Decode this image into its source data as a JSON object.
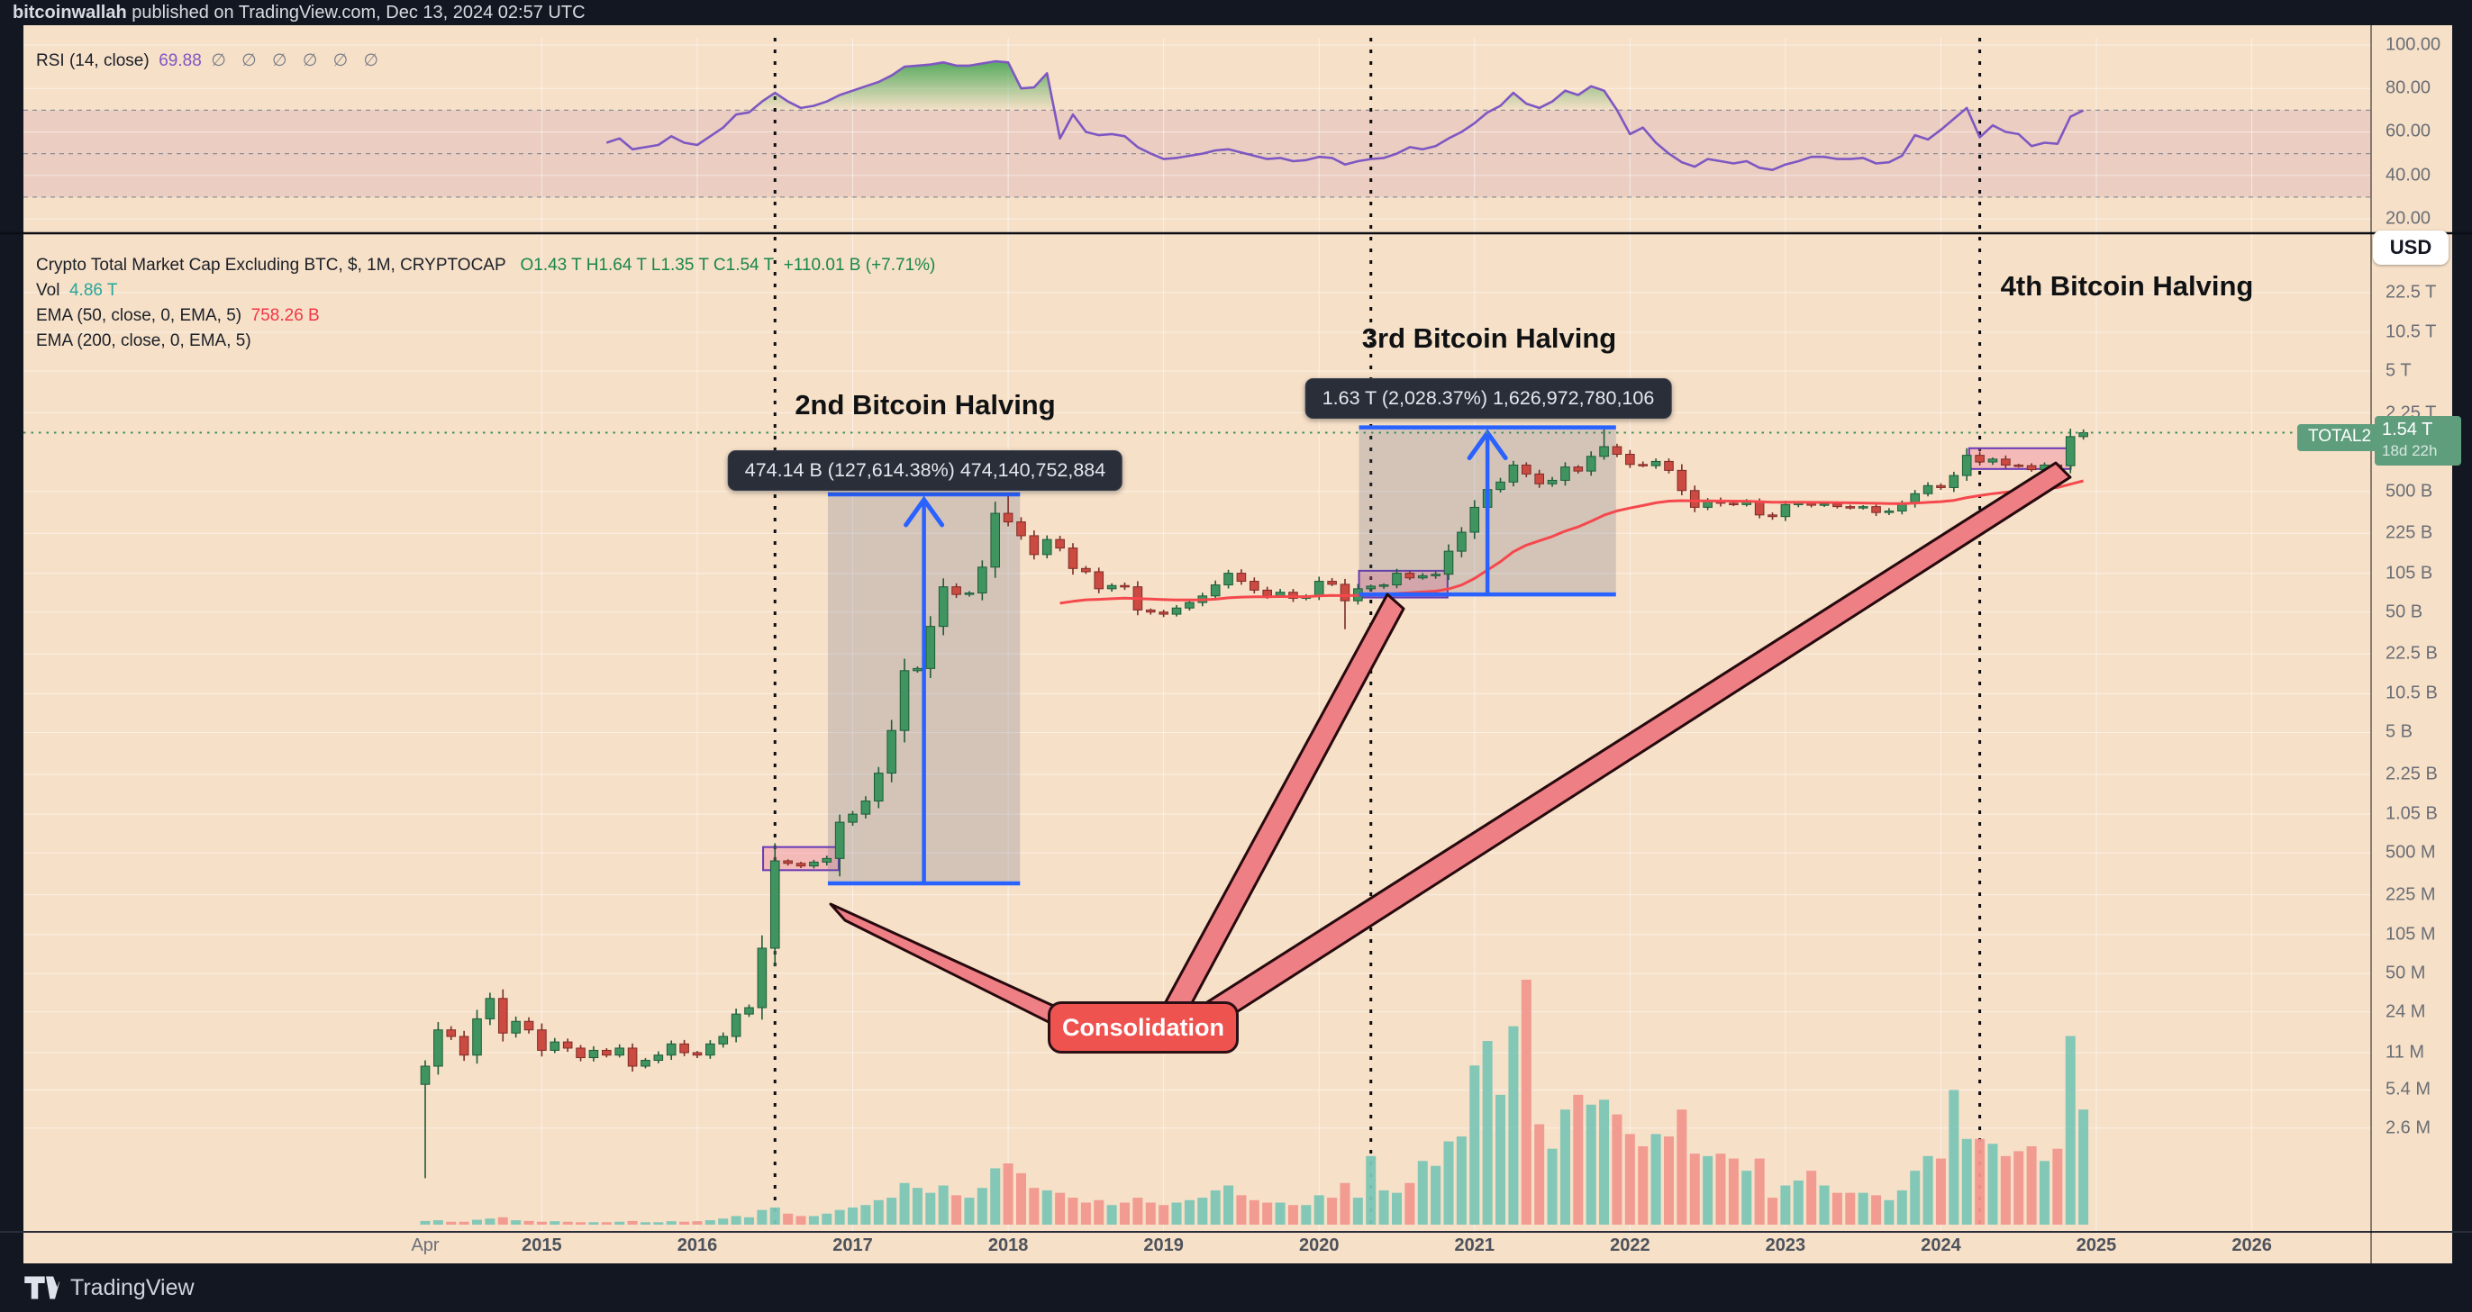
{
  "header": {
    "user": "bitcoinwallah",
    "rest": " published on TradingView.com, Dec 13, 2024 02:57 UTC"
  },
  "footer": {
    "brand": "TradingView"
  },
  "rsi_pane": {
    "legend": "RSI (14, close)",
    "value": "69.88",
    "empties": "∅ ∅ ∅ ∅ ∅ ∅",
    "axis": [
      "100.00",
      "80.00",
      "60.00",
      "40.00",
      "20.00"
    ]
  },
  "main_pane": {
    "legend_title": "Crypto Total Market Cap Excluding BTC, $, 1M, CRYPTOCAP",
    "ohlc": "O1.43 T  H1.64 T  L1.35 T  C1.54 T",
    "change": "+110.01 B (+7.71%)",
    "vol_label": "Vol",
    "vol_value": "4.86 T",
    "ema50_label": "EMA (50, close, 0, EMA, 5)",
    "ema50_value": "758.26 B",
    "ema200_label": "EMA (200, close, 0, EMA, 5)",
    "usd": "USD",
    "symbol_badge": "TOTAL2",
    "price_badge": {
      "price": "1.54 T",
      "countdown": "18d 22h"
    },
    "price_axis": [
      {
        "label": "22.5 T",
        "value": 22500000000000.0
      },
      {
        "label": "10.5 T",
        "value": 10500000000000.0
      },
      {
        "label": "5 T",
        "value": 5000000000000.0
      },
      {
        "label": "2.25 T",
        "value": 2250000000000.0
      },
      {
        "label": "500 B",
        "value": 500000000000.0
      },
      {
        "label": "225 B",
        "value": 225000000000.0
      },
      {
        "label": "105 B",
        "value": 105000000000.0
      },
      {
        "label": "50 B",
        "value": 50000000000.0
      },
      {
        "label": "22.5 B",
        "value": 22500000000.0
      },
      {
        "label": "10.5 B",
        "value": 10500000000.0
      },
      {
        "label": "5 B",
        "value": 5000000000.0
      },
      {
        "label": "2.25 B",
        "value": 2250000000.0
      },
      {
        "label": "1.05 B",
        "value": 1050000000.0
      },
      {
        "label": "500 M",
        "value": 500000000.0
      },
      {
        "label": "225 M",
        "value": 225000000.0
      },
      {
        "label": "105 M",
        "value": 105000000.0
      },
      {
        "label": "50 M",
        "value": 50000000.0
      },
      {
        "label": "24 M",
        "value": 24000000.0
      },
      {
        "label": "11 M",
        "value": 11000000.0
      },
      {
        "label": "5.4 M",
        "value": 5400000.0
      },
      {
        "label": "2.6 M",
        "value": 2600000.0
      }
    ]
  },
  "annotations": {
    "halvings": [
      {
        "title": "2nd Bitcoin Halving",
        "tooltip": "474.14 B (127,614.38%) 474,140,752,884"
      },
      {
        "title": "3rd Bitcoin Halving",
        "tooltip": "1.63 T (2,028.37%) 1,626,972,780,106"
      },
      {
        "title": "4th Bitcoin Halving"
      }
    ],
    "consolidation": "Consolidation"
  },
  "time_axis": [
    {
      "label": "Apr",
      "m": 0,
      "year": false
    },
    {
      "label": "2015",
      "m": 9,
      "year": true
    },
    {
      "label": "2016",
      "m": 21,
      "year": true
    },
    {
      "label": "2017",
      "m": 33,
      "year": true
    },
    {
      "label": "2018",
      "m": 45,
      "year": true
    },
    {
      "label": "2019",
      "m": 57,
      "year": true
    },
    {
      "label": "2020",
      "m": 69,
      "year": true
    },
    {
      "label": "2021",
      "m": 81,
      "year": true
    },
    {
      "label": "2022",
      "m": 93,
      "year": true
    },
    {
      "label": "2023",
      "m": 105,
      "year": true
    },
    {
      "label": "2024",
      "m": 117,
      "year": true
    },
    {
      "label": "2025",
      "m": 129,
      "year": true
    },
    {
      "label": "2026",
      "m": 141,
      "year": true
    }
  ],
  "colors": {
    "up": "#3f9460",
    "up_edge": "#1e5c38",
    "down": "#cb4a41",
    "down_edge": "#7d2d27",
    "vol_up": "#7cc5b6",
    "vol_down": "#f0978e",
    "ema": "#f5484d",
    "rsi": "#7e57c2",
    "rsi_fill": "#2f9e44",
    "accent_blue": "#2962ff",
    "badge_green": "#5f9e7d",
    "label_red": "#ef5350",
    "ribbon": "#ee7f85",
    "ribbon_edge": "#26090d",
    "bg": "#f6e0c8",
    "dark": "#131722"
  },
  "chart_data": {
    "type": "candlestick",
    "title": "Crypto Total Market Cap Excluding BTC, $, 1M, CRYPTOCAP",
    "start": "2014-04",
    "interval": "1M",
    "scale": "log",
    "first_open": 6000000.0,
    "closes": [
      8500000.0,
      17000000.0,
      15000000.0,
      10500000.0,
      21000000.0,
      31000000.0,
      16000000.0,
      20000000.0,
      17000000.0,
      11500000.0,
      13500000.0,
      12000000.0,
      10000000.0,
      11500000.0,
      10500000.0,
      12000000.0,
      8500000.0,
      9500000.0,
      10500000.0,
      13000000.0,
      11000000.0,
      10500000.0,
      13000000.0,
      15000000.0,
      23000000.0,
      26000000.0,
      81000000.0,
      430000000.0,
      410000000.0,
      390000000.0,
      420000000.0,
      450000000.0,
      900000000.0,
      1050000000.0,
      1350000000.0,
      2300000000.0,
      5200000000.0,
      16300000000.0,
      17000000000.0,
      38000000000.0,
      81000000000.0,
      70000000000.0,
      72000000000.0,
      118000000000.0,
      330000000000.0,
      280000000000.0,
      215000000000.0,
      150000000000.0,
      200000000000.0,
      170000000000.0,
      115000000000.0,
      108000000000.0,
      78000000000.0,
      83000000000.0,
      81000000000.0,
      52000000000.0,
      50000000000.0,
      48000000000.0,
      54000000000.0,
      60000000000.0,
      68000000000.0,
      84000000000.0,
      105000000000.0,
      90000000000.0,
      76000000000.0,
      68000000000.0,
      73000000000.0,
      65000000000.0,
      68000000000.0,
      90000000000.0,
      85000000000.0,
      62000000000.0,
      78000000000.0,
      82000000000.0,
      84000000000.0,
      105000000000.0,
      96000000000.0,
      100000000000.0,
      103000000000.0,
      160000000000.0,
      230000000000.0,
      370000000000.0,
      520000000000.0,
      600000000000.0,
      830000000000.0,
      700000000000.0,
      580000000000.0,
      620000000000.0,
      800000000000.0,
      740000000000.0,
      980000000000.0,
      1180000000000.0,
      1020000000000.0,
      840000000000.0,
      820000000000.0,
      890000000000.0,
      750000000000.0,
      510000000000.0,
      370000000000.0,
      420000000000.0,
      400000000000.0,
      390000000000.0,
      410000000000.0,
      320000000000.0,
      310000000000.0,
      390000000000.0,
      400000000000.0,
      385000000000.0,
      395000000000.0,
      375000000000.0,
      365000000000.0,
      375000000000.0,
      335000000000.0,
      345000000000.0,
      400000000000.0,
      480000000000.0,
      560000000000.0,
      540000000000.0,
      680000000000.0,
      1000000000000.0,
      880000000000.0,
      930000000000.0,
      830000000000.0,
      820000000000.0,
      760000000000.0,
      830000000000.0,
      820000000000.0,
      1430000000000.0,
      1540000000000.0
    ],
    "overrides": {
      "0": {
        "low": 1000000.0
      },
      "32": {
        "low": 320000000.0
      },
      "45": {
        "high": 474500000000.0
      },
      "71": {
        "low": 36000000000.0
      },
      "91": {
        "high": 1707000000000.0
      },
      "119": {
        "high": 1145000000000.0
      },
      "128": {
        "open": 1430000000000.0,
        "high": 1640000000000.0,
        "low": 1350000000000.0
      }
    },
    "volume_rel": [
      0.015,
      0.018,
      0.012,
      0.012,
      0.02,
      0.025,
      0.03,
      0.018,
      0.015,
      0.012,
      0.014,
      0.012,
      0.01,
      0.01,
      0.01,
      0.012,
      0.015,
      0.01,
      0.01,
      0.014,
      0.012,
      0.014,
      0.018,
      0.025,
      0.035,
      0.03,
      0.06,
      0.07,
      0.045,
      0.035,
      0.035,
      0.045,
      0.06,
      0.07,
      0.08,
      0.1,
      0.11,
      0.17,
      0.15,
      0.13,
      0.16,
      0.12,
      0.11,
      0.15,
      0.23,
      0.25,
      0.21,
      0.15,
      0.14,
      0.13,
      0.11,
      0.09,
      0.1,
      0.08,
      0.09,
      0.11,
      0.09,
      0.08,
      0.09,
      0.1,
      0.11,
      0.14,
      0.16,
      0.12,
      0.1,
      0.09,
      0.09,
      0.08,
      0.08,
      0.12,
      0.11,
      0.17,
      0.11,
      0.28,
      0.14,
      0.13,
      0.17,
      0.26,
      0.24,
      0.34,
      0.36,
      0.65,
      0.75,
      0.53,
      0.81,
      1.0,
      0.41,
      0.31,
      0.47,
      0.53,
      0.49,
      0.51,
      0.45,
      0.37,
      0.32,
      0.37,
      0.36,
      0.47,
      0.29,
      0.28,
      0.29,
      0.27,
      0.22,
      0.27,
      0.11,
      0.16,
      0.18,
      0.22,
      0.16,
      0.13,
      0.13,
      0.13,
      0.12,
      0.1,
      0.14,
      0.22,
      0.28,
      0.27,
      0.55,
      0.35,
      0.35,
      0.33,
      0.28,
      0.3,
      0.32,
      0.26,
      0.31,
      0.77,
      0.47
    ],
    "rsi": {
      "period": 14,
      "start_index": 14,
      "current": 69.88,
      "levels": [
        70,
        50,
        30
      ],
      "values": [
        55,
        57,
        52,
        53,
        54,
        58,
        55,
        54,
        58,
        62,
        68,
        69,
        74,
        78,
        74,
        71,
        72,
        74,
        77,
        79,
        81,
        83,
        86,
        90,
        90.5,
        91,
        92,
        90.5,
        90.5,
        91.5,
        92.5,
        92,
        80,
        80.5,
        87,
        57,
        68,
        60,
        58.5,
        59,
        58,
        53,
        50,
        47.5,
        48,
        49,
        50,
        51.5,
        52,
        50.5,
        49,
        47.5,
        48,
        46.5,
        47,
        48.5,
        48,
        45,
        46.5,
        47.5,
        48,
        50,
        53,
        52,
        53.5,
        57,
        60,
        64,
        69,
        72,
        78,
        73,
        71,
        74,
        79,
        77,
        81,
        79,
        70,
        59,
        62,
        55,
        50,
        46,
        44,
        47.5,
        46.5,
        45.5,
        46.5,
        43.5,
        42.5,
        45,
        46.5,
        48.5,
        48.5,
        47.5,
        47.5,
        48,
        45.5,
        46,
        49,
        58.5,
        56.5,
        61,
        66,
        71,
        57.5,
        63,
        60,
        59,
        53.5,
        55,
        54.5,
        67,
        69.88
      ]
    },
    "ema50_period": 50,
    "halving_indices": [
      27,
      73,
      120
    ],
    "measures": [
      {
        "i0": 31.5,
        "i1": 45.5,
        "low": 280000000.0,
        "high": 474500000000.0
      },
      {
        "i0": 72.5,
        "i1": 91.5,
        "low": 70000000000.0,
        "high": 1707000000000.0
      }
    ],
    "consolidation_boxes": [
      {
        "i0": 26.5,
        "i1": 31.5,
        "low": 360000000.0,
        "high": 560000000.0
      },
      {
        "i0": 72.5,
        "i1": 78.5,
        "low": 66000000000.0,
        "high": 110000000000.0
      },
      {
        "i0": 119.6,
        "i1": 126.6,
        "low": 770000000000.0,
        "high": 1145000000000.0
      }
    ],
    "current_price": 1540000000000.0
  }
}
